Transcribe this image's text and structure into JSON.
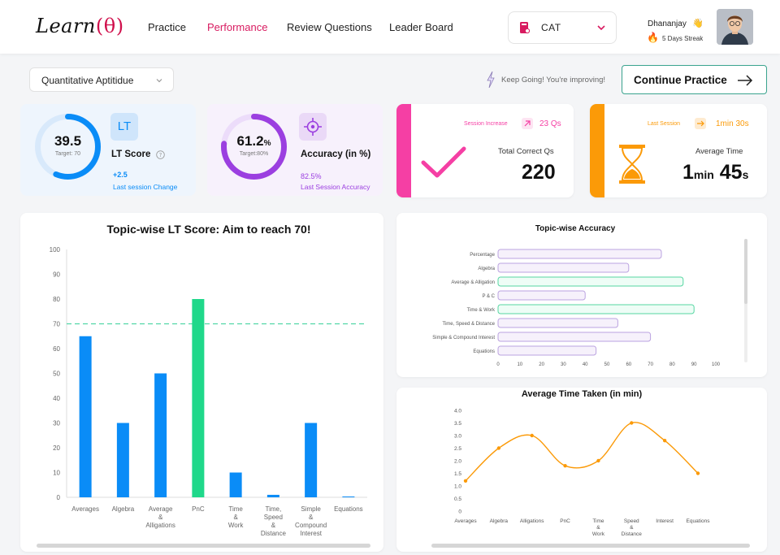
{
  "header": {
    "logo": {
      "text": "Learn",
      "symbol": "(θ)"
    },
    "nav": [
      {
        "label": "Practice",
        "active": false
      },
      {
        "label": "Performance",
        "active": true
      },
      {
        "label": "Review Questions",
        "active": false
      },
      {
        "label": "Leader Board",
        "active": false
      }
    ],
    "exam_select": {
      "value": "CAT",
      "icon": "cat-book-icon"
    },
    "user": {
      "name": "Dhananjay",
      "wave": "👋",
      "streak_icon": "🔥",
      "streak": "5 Days Streak"
    }
  },
  "toolbar": {
    "subject": "Quantitative Aptitidue",
    "motivation": "Keep Going! You're improving!",
    "continue_label": "Continue Practice"
  },
  "cards": {
    "lt": {
      "value": "39.5",
      "target_text": "Target: 70",
      "progress": 0.564,
      "title": "LT Score",
      "tile": "LT",
      "delta": "+2.5",
      "delta_label": "Last session Change"
    },
    "accuracy": {
      "value": "61.2",
      "unit": "%",
      "target_text": "Target:80%",
      "progress": 0.765,
      "title": "Accuracy (in %)",
      "last": "82.5%",
      "last_label": "Last Session Accuracy"
    },
    "total_correct": {
      "note": "Session Increase",
      "note_value": "23 Qs",
      "label": "Total Correct Qs",
      "value": "220"
    },
    "avg_time": {
      "note": "Last Session",
      "note_value": "1min 30s",
      "label": "Average Time",
      "min_value": "1",
      "min_unit": "min",
      "sec_value": "45",
      "sec_unit": "s"
    }
  },
  "colors": {
    "accent": "#d81b60",
    "blue": "#0a8cf7",
    "green": "#1fd88a",
    "pink": "#f53fa4",
    "orange": "#fb9a08",
    "purple": "#9b3fe0",
    "teal": "#3aa38e"
  },
  "chart_data": [
    {
      "type": "bar",
      "title": "Topic-wise LT Score: Aim to reach 70!",
      "categories": [
        "Averages",
        "Algebra",
        "Average & Alligations",
        "PnC",
        "Time & Work",
        "Time, Speed & Distance",
        "Simple & Compound Interest",
        "Equations"
      ],
      "category_lines": [
        [
          "Averages"
        ],
        [
          "Algebra"
        ],
        [
          "Average",
          "&",
          "Alligations"
        ],
        [
          "PnC"
        ],
        [
          "Time",
          "&",
          "Work"
        ],
        [
          "Time,",
          "Speed",
          "&",
          "Distance"
        ],
        [
          "Simple",
          "&",
          "Compound",
          "Interest"
        ],
        [
          "Equations"
        ]
      ],
      "values": [
        65,
        30,
        50,
        80,
        10,
        1,
        30,
        0
      ],
      "highlight": [
        false,
        false,
        false,
        true,
        false,
        false,
        false,
        false
      ],
      "target_line": 70,
      "ylim": [
        0,
        100
      ],
      "yticks": [
        0,
        10,
        20,
        30,
        40,
        50,
        60,
        70,
        80,
        90,
        100
      ]
    },
    {
      "type": "bar",
      "orientation": "horizontal",
      "title": "Topic-wise Accuracy",
      "categories": [
        "Percentage",
        "Algebra",
        "Average & Alligation",
        "P & C",
        "Time & Work",
        "Time, Speed & Distance",
        "Simple & Compound Interest",
        "Equations"
      ],
      "values": [
        75,
        60,
        85,
        40,
        90,
        55,
        70,
        45
      ],
      "highlight": [
        false,
        false,
        true,
        false,
        true,
        false,
        false,
        false
      ],
      "xlim": [
        0,
        100
      ],
      "xticks": [
        0,
        10,
        20,
        30,
        40,
        50,
        60,
        70,
        80,
        90,
        100
      ]
    },
    {
      "type": "line",
      "title": "Average Time Taken (in min)",
      "categories": [
        "Averages",
        "Algebra",
        "Alligations",
        "PnC",
        "Time & Work",
        "Speed & Distance",
        "Interest",
        "Equations"
      ],
      "category_lines": [
        [
          "Averages"
        ],
        [
          "Algebra"
        ],
        [
          "Alligations"
        ],
        [
          "PnC"
        ],
        [
          "Time",
          "&",
          "Work"
        ],
        [
          "Speed",
          "&",
          "Distance"
        ],
        [
          "Interest"
        ],
        [
          "Equations"
        ]
      ],
      "values": [
        1.2,
        2.5,
        3.0,
        1.8,
        2.0,
        3.5,
        2.8,
        1.5
      ],
      "ylim": [
        0,
        4
      ],
      "yticks": [
        "0",
        "0.5",
        "1.0",
        "1.5",
        "2.0",
        "2.5",
        "3.0",
        "3.5",
        "4.0"
      ]
    }
  ]
}
